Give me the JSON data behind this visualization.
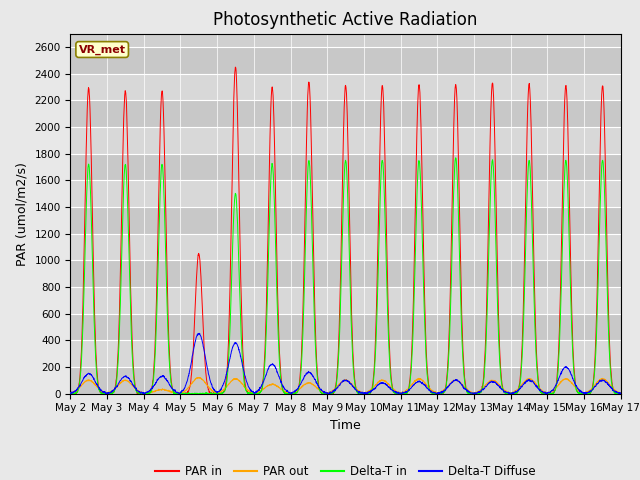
{
  "title": "Photosynthetic Active Radiation",
  "ylabel": "PAR (umol/m2/s)",
  "xlabel": "Time",
  "ylim": [
    0,
    2700
  ],
  "yticks": [
    0,
    200,
    400,
    600,
    800,
    1000,
    1200,
    1400,
    1600,
    1800,
    2000,
    2200,
    2400,
    2600
  ],
  "fig_facecolor": "#e8e8e8",
  "axes_facecolor": "#c8c8c8",
  "legend_label": "VR_met",
  "series_labels": [
    "PAR in",
    "PAR out",
    "Delta-T in",
    "Delta-T Diffuse"
  ],
  "series_colors": [
    "red",
    "orange",
    "lime",
    "blue"
  ],
  "n_days": 15,
  "day_start": 2,
  "par_in_peaks": [
    2290,
    2270,
    2270,
    1050,
    2450,
    2300,
    2340,
    2310,
    2310,
    2320,
    2320,
    2330,
    2320,
    2310,
    2310
  ],
  "par_out_peaks": [
    100,
    100,
    30,
    120,
    110,
    70,
    80,
    100,
    100,
    110,
    100,
    100,
    110,
    110,
    110
  ],
  "delta_t_peaks": [
    1720,
    1720,
    1720,
    0,
    1500,
    1720,
    1750,
    1750,
    1750,
    1750,
    1770,
    1750,
    1750,
    1750,
    1750
  ],
  "delta_diff_peaks": [
    150,
    130,
    130,
    450,
    380,
    220,
    160,
    100,
    80,
    90,
    100,
    90,
    100,
    200,
    100
  ],
  "title_fontsize": 12,
  "tick_label_fontsize": 7.5,
  "axis_label_fontsize": 9,
  "vr_label_fontsize": 8
}
